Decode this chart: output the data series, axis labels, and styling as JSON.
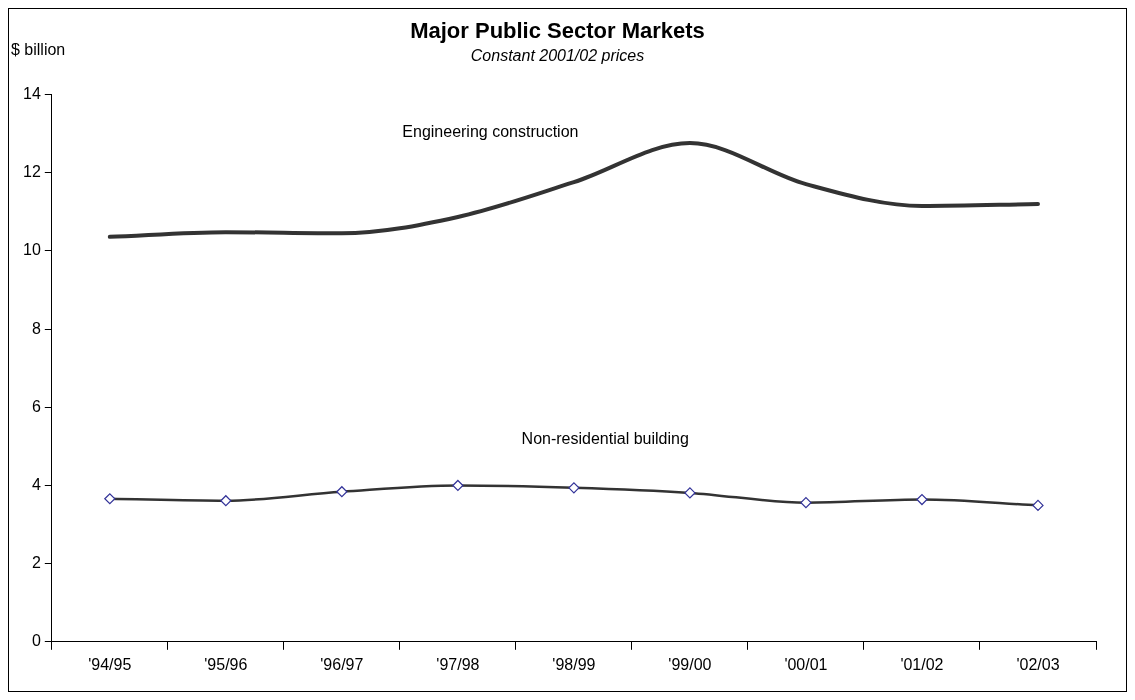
{
  "chart_data": {
    "type": "line",
    "title": "Major Public Sector Markets",
    "subtitle": "Constant 2001/02 prices",
    "ylabel": "$ billion",
    "categories": [
      "'94/95",
      "'95/96",
      "'96/97",
      "'97/98",
      "'98/99",
      "'99/00",
      "'00/01",
      "'01/02",
      "'02/03"
    ],
    "series": [
      {
        "name": "Engineering construction",
        "color": "#333333",
        "marker": "none",
        "values": [
          10.36,
          10.48,
          10.45,
          10.87,
          11.76,
          12.76,
          11.71,
          11.15,
          11.2
        ]
      },
      {
        "name": "Non-residential building",
        "color": "#333333",
        "marker": "diamond",
        "values": [
          3.66,
          3.61,
          3.84,
          4.0,
          3.94,
          3.81,
          3.56,
          3.64,
          3.49
        ]
      }
    ],
    "ylim": [
      0,
      14
    ],
    "yticks": [
      0,
      2,
      4,
      6,
      8,
      10,
      12,
      14
    ],
    "grid": false,
    "legend": false,
    "line_style": "solid"
  }
}
